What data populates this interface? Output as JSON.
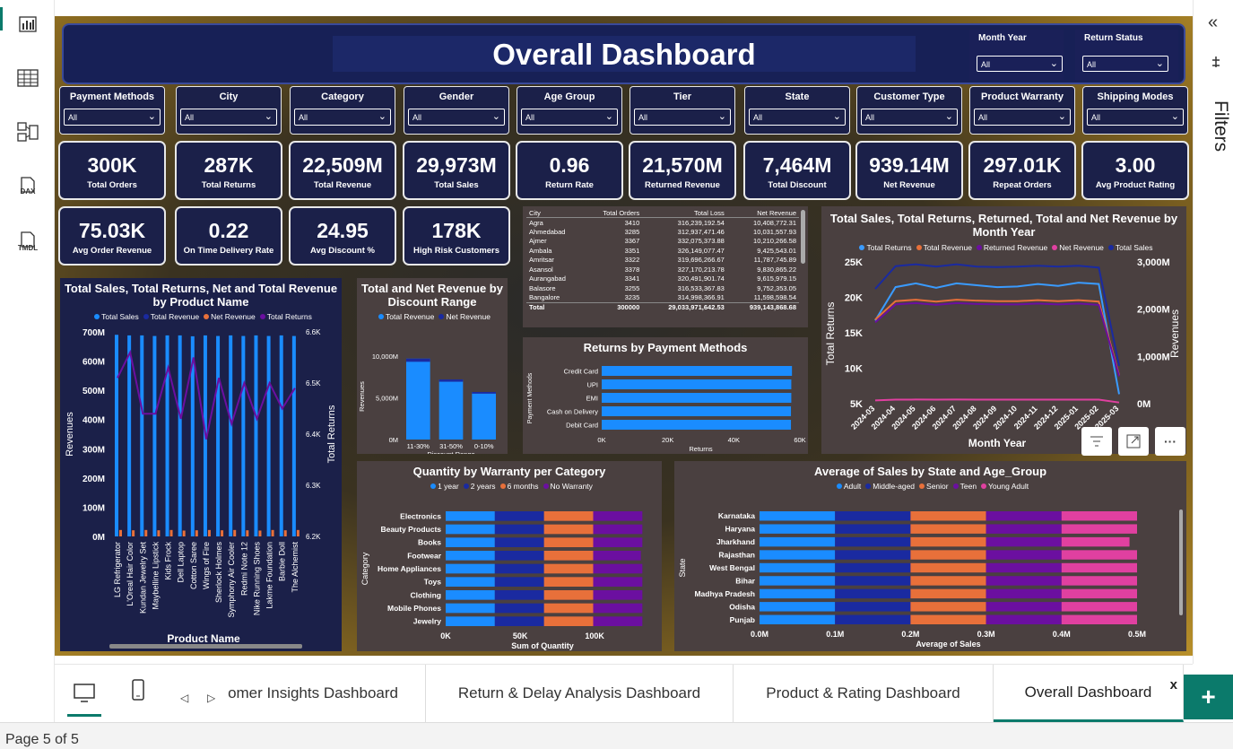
{
  "rail": {
    "icons": [
      "report-view-icon",
      "table-view-icon",
      "model-view-icon",
      "dax-query-icon",
      "tmdl-view-icon"
    ],
    "dax": "DAX",
    "tmdl": "TMDL"
  },
  "right": {
    "collapse": "«",
    "filters": "Filters"
  },
  "title": "Overall Dashboard",
  "top_slicers": [
    {
      "label": "Month Year",
      "value": "All"
    },
    {
      "label": "Return Status",
      "value": "All"
    }
  ],
  "slicers": [
    {
      "label": "Payment Methods",
      "value": "All"
    },
    {
      "label": "City",
      "value": "All"
    },
    {
      "label": "Category",
      "value": "All"
    },
    {
      "label": "Gender",
      "value": "All"
    },
    {
      "label": "Age Group",
      "value": "All"
    },
    {
      "label": "Tier",
      "value": "All"
    },
    {
      "label": "State",
      "value": "All"
    },
    {
      "label": "Customer Type",
      "value": "All"
    },
    {
      "label": "Product Warranty",
      "value": "All"
    },
    {
      "label": "Shipping Modes",
      "value": "All"
    }
  ],
  "kpis_row1": [
    {
      "value": "300K",
      "label": "Total Orders"
    },
    {
      "value": "287K",
      "label": "Total Returns"
    },
    {
      "value": "22,509M",
      "label": "Total Revenue"
    },
    {
      "value": "29,973M",
      "label": "Total Sales"
    },
    {
      "value": "0.96",
      "label": "Return Rate"
    },
    {
      "value": "21,570M",
      "label": "Returned Revenue"
    },
    {
      "value": "7,464M",
      "label": "Total Discount"
    },
    {
      "value": "939.14M",
      "label": "Net Revenue"
    },
    {
      "value": "297.01K",
      "label": "Repeat Orders"
    },
    {
      "value": "3.00",
      "label": "Avg Product Rating"
    }
  ],
  "kpis_row2": [
    {
      "value": "75.03K",
      "label": "Avg Order Revenue"
    },
    {
      "value": "0.22",
      "label": "On Time Delivery Rate"
    },
    {
      "value": "24.95",
      "label": "Avg Discount %"
    },
    {
      "value": "178K",
      "label": "High Risk Customers"
    }
  ],
  "city_table": {
    "headers": [
      "City",
      "Total Orders",
      "Total Loss",
      "Net Revenue"
    ],
    "rows": [
      [
        "Agra",
        "3410",
        "316,239,192.54",
        "10,408,772.31"
      ],
      [
        "Ahmedabad",
        "3285",
        "312,937,471.46",
        "10,031,557.93"
      ],
      [
        "Ajmer",
        "3367",
        "332,075,373.88",
        "10,210,266.58"
      ],
      [
        "Ambala",
        "3351",
        "326,149,077.47",
        "9,425,543.01"
      ],
      [
        "Amritsar",
        "3322",
        "319,696,266.67",
        "11,787,745.89"
      ],
      [
        "Asansol",
        "3378",
        "327,170,213.78",
        "9,830,865.22"
      ],
      [
        "Aurangabad",
        "3341",
        "320,491,901.74",
        "9,615,979.15"
      ],
      [
        "Balasore",
        "3255",
        "316,533,367.83",
        "9,752,353.05"
      ],
      [
        "Bangalore",
        "3235",
        "314,998,366.91",
        "11,598,598.54"
      ]
    ],
    "total": [
      "Total",
      "300000",
      "29,033,971,642.53",
      "939,143,868.68"
    ]
  },
  "chart_data": [
    {
      "type": "bar",
      "id": "product",
      "title": "Total Sales, Total Returns, Net and Total Revenue by Product Name",
      "legend": [
        "Total Sales",
        "Total Revenue",
        "Net Revenue",
        "Total Returns"
      ],
      "xlabel": "Product Name",
      "ylabel": "Revenues",
      "y2label": "Total Returns",
      "categories": [
        "LG Refrigerator",
        "L'Oreal Hair Color",
        "Kundan Jewelry Set",
        "Maybelline Lipstick",
        "Kids Frock",
        "Dell Laptop",
        "Cotton Saree",
        "Wings of Fire",
        "Sherlock Holmes",
        "Symphony Air Cooler",
        "Redmi Note 12",
        "Nike Running Shoes",
        "Lakme Foundation",
        "Barbie Doll",
        "The Alchemist"
      ],
      "y_ticks": [
        "700M",
        "600M",
        "500M",
        "400M",
        "300M",
        "200M",
        "100M",
        "0M"
      ],
      "y2_ticks": [
        "6.6K",
        "6.5K",
        "6.4K",
        "6.3K",
        "6.2K"
      ],
      "ylim": [
        0,
        700
      ],
      "y2lim": [
        6200,
        6600
      ],
      "series": [
        {
          "name": "Total Sales",
          "values": [
            690,
            688,
            688,
            686,
            688,
            688,
            685,
            688,
            686,
            688,
            686,
            688,
            686,
            688,
            686
          ]
        },
        {
          "name": "Net Revenue",
          "values": [
            22,
            21,
            22,
            21,
            22,
            20,
            21,
            22,
            21,
            22,
            21,
            20,
            22,
            21,
            22
          ]
        },
        {
          "name": "Total Returns",
          "values": [
            6510,
            6560,
            6440,
            6440,
            6530,
            6430,
            6550,
            6390,
            6510,
            6420,
            6500,
            6430,
            6500,
            6450,
            6490
          ]
        }
      ]
    },
    {
      "type": "bar",
      "id": "discount",
      "title": "Total and Net Revenue by Discount Range",
      "legend": [
        "Total Revenue",
        "Net Revenue"
      ],
      "categories": [
        "11-30%",
        "31-50%",
        "0-10%"
      ],
      "xlabel": "Discount Range",
      "ylabel": "Revenues",
      "y_ticks": [
        "10,000M",
        "5,000M",
        "0M"
      ],
      "ylim": [
        0,
        10000
      ],
      "series": [
        {
          "name": "Total Revenue",
          "values": [
            9700,
            7200,
            5700
          ]
        },
        {
          "name": "Net Revenue",
          "values": [
            380,
            270,
            200
          ]
        }
      ]
    },
    {
      "type": "bar",
      "id": "payment",
      "title": "Returns by Payment Methods",
      "categories": [
        "Credit Card",
        "UPI",
        "EMI",
        "Cash on Delivery",
        "Debit Card"
      ],
      "xlabel": "Returns",
      "ylabel": "Payment Methods",
      "x_ticks": [
        "0K",
        "20K",
        "40K",
        "60K"
      ],
      "xlim": [
        0,
        60
      ],
      "values": [
        57.6,
        57.4,
        57.4,
        57.3,
        57.3
      ]
    },
    {
      "type": "line",
      "id": "monthly",
      "title": "Total Sales, Total Returns, Returned, Total and Net Revenue by Month Year",
      "legend": [
        "Total Returns",
        "Total Revenue",
        "Returned Revenue",
        "Net Revenue",
        "Total Sales"
      ],
      "xlabel": "Month Year",
      "ylabel": "Total Returns",
      "y2label": "Revenues",
      "x": [
        "2024-03",
        "2024-04",
        "2024-05",
        "2024-06",
        "2024-07",
        "2024-08",
        "2024-09",
        "2024-10",
        "2024-11",
        "2024-12",
        "2025-01",
        "2025-02",
        "2025-03"
      ],
      "y_ticks": [
        "25K",
        "20K",
        "15K",
        "10K",
        "5K"
      ],
      "y2_ticks": [
        "3,000M",
        "2,000M",
        "1,000M",
        "0M"
      ],
      "ylim": [
        5000,
        27500
      ],
      "y2lim": [
        0,
        3000
      ],
      "series": [
        {
          "name": "Total Returns",
          "values": [
            18200,
            23500,
            24100,
            23400,
            24100,
            23800,
            23500,
            23600,
            24000,
            23700,
            24200,
            24000,
            6500
          ]
        },
        {
          "name": "Total Sales",
          "values": [
            2430,
            2910,
            2950,
            2900,
            2950,
            2900,
            2890,
            2900,
            2920,
            2900,
            2920,
            2880,
            800
          ]
        },
        {
          "name": "Total Revenue",
          "values": [
            1780,
            2170,
            2200,
            2160,
            2200,
            2180,
            2170,
            2170,
            2190,
            2170,
            2190,
            2160,
            600
          ]
        },
        {
          "name": "Returned Revenue",
          "values": [
            1720,
            2100,
            2130,
            2090,
            2130,
            2110,
            2100,
            2100,
            2120,
            2100,
            2120,
            2090,
            580
          ]
        },
        {
          "name": "Net Revenue",
          "values": [
            70,
            85,
            87,
            85,
            87,
            86,
            85,
            86,
            86,
            85,
            86,
            85,
            25
          ]
        }
      ]
    },
    {
      "type": "bar",
      "id": "warranty",
      "title": "Quantity by Warranty per Category",
      "legend": [
        "1 year",
        "2 years",
        "6 months",
        "No Warranty"
      ],
      "categories": [
        "Electronics",
        "Beauty Products",
        "Books",
        "Footwear",
        "Home Appliances",
        "Toys",
        "Clothing",
        "Mobile Phones",
        "Jewelry"
      ],
      "xlabel": "Sum of Quantity",
      "ylabel": "Category",
      "x_ticks": [
        "0K",
        "50K",
        "100K"
      ],
      "xlim": [
        0,
        130
      ],
      "series": [
        {
          "name": "1 year",
          "values": [
            33,
            33,
            33,
            33,
            33,
            33,
            33,
            33,
            33
          ]
        },
        {
          "name": "2 years",
          "values": [
            33,
            33,
            33,
            33,
            33,
            33,
            33,
            33,
            33
          ]
        },
        {
          "name": "6 months",
          "values": [
            33,
            33,
            33,
            33,
            33,
            33,
            33,
            33,
            33
          ]
        },
        {
          "name": "No Warranty",
          "values": [
            33,
            33,
            33,
            32,
            33,
            33,
            33,
            33,
            33
          ]
        }
      ]
    },
    {
      "type": "bar",
      "id": "state",
      "title": "Average of Sales by State and Age_Group",
      "legend": [
        "Adult",
        "Middle-aged",
        "Senior",
        "Teen",
        "Young Adult"
      ],
      "categories": [
        "Karnataka",
        "Haryana",
        "Jharkhand",
        "Rajasthan",
        "West Bengal",
        "Bihar",
        "Madhya Pradesh",
        "Odisha",
        "Punjab"
      ],
      "xlabel": "Average of Sales",
      "ylabel": "State",
      "x_ticks": [
        "0.0M",
        "0.1M",
        "0.2M",
        "0.3M",
        "0.4M",
        "0.5M"
      ],
      "xlim": [
        0,
        0.5
      ],
      "series": [
        {
          "name": "Adult",
          "values": [
            0.1,
            0.1,
            0.1,
            0.1,
            0.1,
            0.1,
            0.1,
            0.1,
            0.1
          ]
        },
        {
          "name": "Middle-aged",
          "values": [
            0.1,
            0.1,
            0.1,
            0.1,
            0.1,
            0.1,
            0.1,
            0.1,
            0.1
          ]
        },
        {
          "name": "Senior",
          "values": [
            0.1,
            0.1,
            0.1,
            0.1,
            0.1,
            0.1,
            0.1,
            0.1,
            0.1
          ]
        },
        {
          "name": "Teen",
          "values": [
            0.1,
            0.1,
            0.1,
            0.1,
            0.1,
            0.1,
            0.1,
            0.1,
            0.1
          ]
        },
        {
          "name": "Young Adult",
          "values": [
            0.1,
            0.1,
            0.09,
            0.1,
            0.1,
            0.1,
            0.1,
            0.1,
            0.1
          ]
        }
      ]
    }
  ],
  "colors": {
    "blue": "#1a8cff",
    "navy": "#1a2aa0",
    "orange": "#e8703a",
    "purple": "#6b0fa0",
    "pink": "#e040a0",
    "light_blue": "#3a9bff"
  },
  "visual_actions": [
    "filter-icon",
    "focus-mode-icon",
    "more-options-icon"
  ],
  "tabs": {
    "items": [
      "omer Insights Dashboard",
      "Return & Delay Analysis Dashboard",
      "Product & Rating Dashboard",
      "Overall Dashboard"
    ],
    "close": "x",
    "add": "+"
  },
  "status": "Page 5 of 5"
}
